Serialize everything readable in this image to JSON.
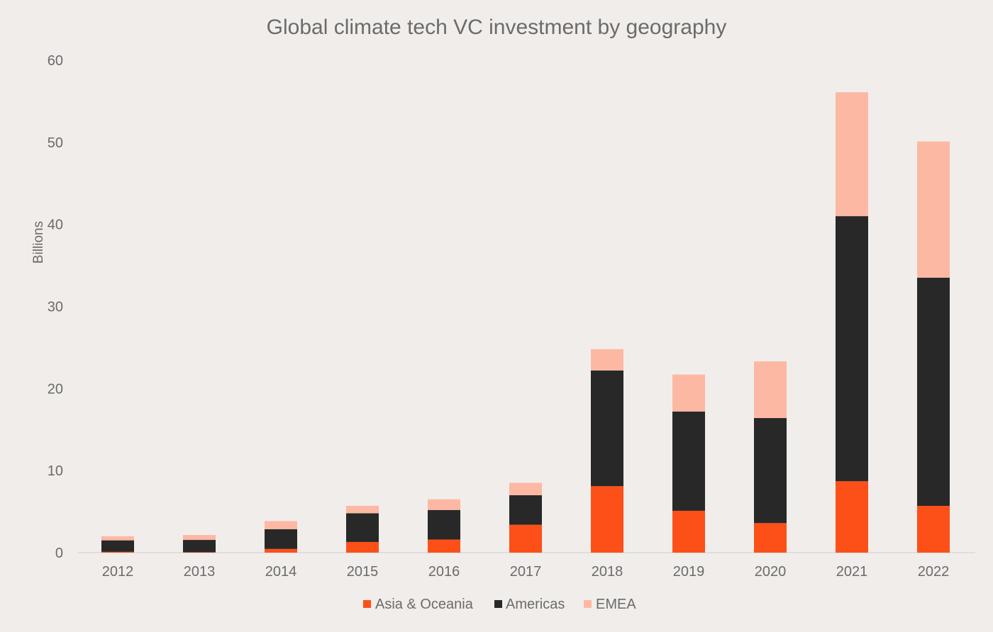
{
  "chart_data": {
    "type": "bar",
    "stacked": true,
    "title": "Global climate tech VC investment by geography",
    "xlabel": "",
    "ylabel": "Billions",
    "ylim": [
      0,
      60
    ],
    "yticks": [
      0,
      10,
      20,
      30,
      40,
      50,
      60
    ],
    "grid": false,
    "legend_position": "bottom",
    "categories": [
      "2012",
      "2013",
      "2014",
      "2015",
      "2016",
      "2017",
      "2018",
      "2019",
      "2020",
      "2021",
      "2022"
    ],
    "series": [
      {
        "name": "Asia & Oceania",
        "color": "#fd5019",
        "values": [
          0.1,
          0.05,
          0.45,
          1.3,
          1.6,
          3.4,
          8.1,
          5.1,
          3.6,
          8.7,
          5.7
        ]
      },
      {
        "name": "Americas",
        "color": "#282828",
        "values": [
          1.4,
          1.5,
          2.4,
          3.5,
          3.6,
          3.6,
          14.1,
          12.1,
          12.8,
          32.3,
          27.8
        ]
      },
      {
        "name": "EMEA",
        "color": "#fdb8a4",
        "values": [
          0.5,
          0.6,
          1.0,
          0.9,
          1.3,
          1.5,
          2.6,
          4.5,
          6.9,
          15.1,
          16.6
        ]
      }
    ]
  }
}
